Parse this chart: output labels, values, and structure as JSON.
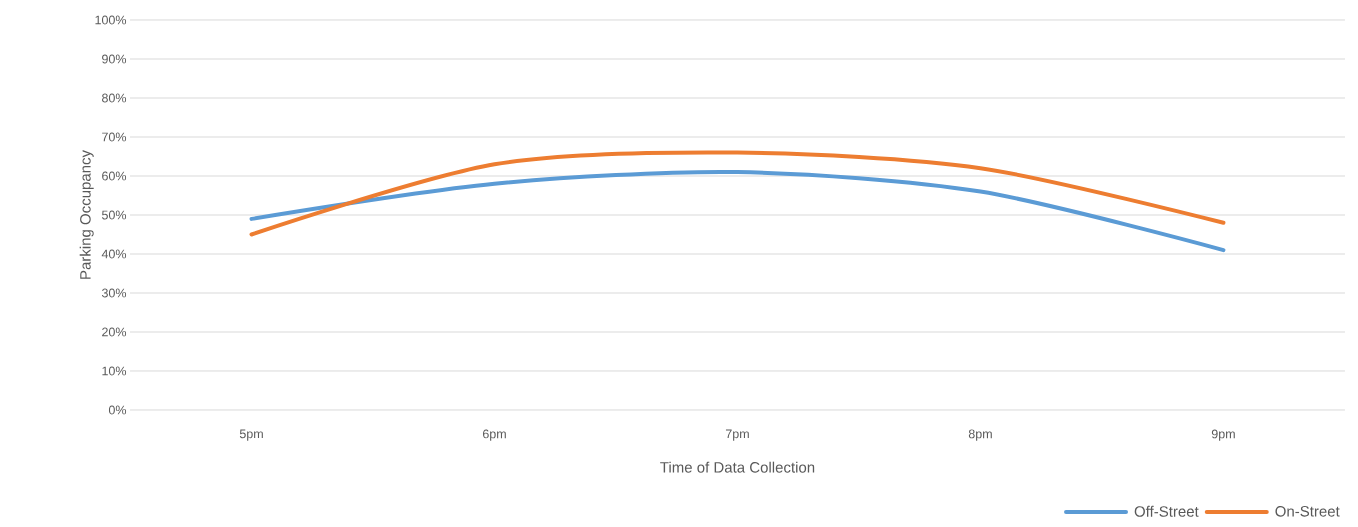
{
  "chart_data": {
    "type": "line",
    "xlabel": "Time of Data Collection",
    "ylabel": "Parking Occupancy",
    "categories": [
      "5pm",
      "6pm",
      "7pm",
      "8pm",
      "9pm"
    ],
    "series": [
      {
        "name": "Off-Street",
        "color": "#5b9bd5",
        "values": [
          49,
          58,
          61,
          56,
          41
        ]
      },
      {
        "name": "On-Street",
        "color": "#ed7d31",
        "values": [
          45,
          63,
          66,
          62,
          48
        ]
      }
    ],
    "ylim": [
      0,
      100
    ],
    "yticks": [
      {
        "value": 0,
        "label": "0%"
      },
      {
        "value": 10,
        "label": "10%"
      },
      {
        "value": 20,
        "label": "20%"
      },
      {
        "value": 30,
        "label": "30%"
      },
      {
        "value": 40,
        "label": "40%"
      },
      {
        "value": 50,
        "label": "50%"
      },
      {
        "value": 60,
        "label": "60%"
      },
      {
        "value": 70,
        "label": "70%"
      },
      {
        "value": 80,
        "label": "80%"
      },
      {
        "value": 90,
        "label": "90%"
      },
      {
        "value": 100,
        "label": "100%"
      }
    ],
    "grid": "y",
    "legend": "bottom right",
    "marker": "none"
  }
}
